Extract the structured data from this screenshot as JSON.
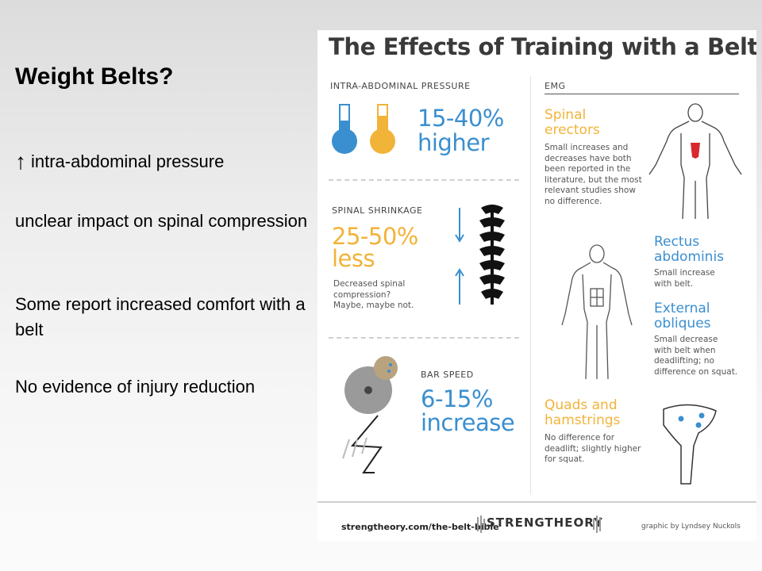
{
  "slide": {
    "title": "Weight Belts?",
    "bullets": {
      "pressure_arrow": "↑",
      "pressure_text": "intra-abdominal pressure",
      "compression": "unclear impact on spinal compression",
      "comfort": "Some report increased comfort with a belt",
      "injury": "No evidence of injury reduction"
    }
  },
  "infographic": {
    "title": "The Effects of Training with a Belt",
    "pressure": {
      "label": "INTRA-ABDOMINAL PRESSURE",
      "value": "15-40%",
      "word": "higher"
    },
    "shrinkage": {
      "label": "SPINAL SHRINKAGE",
      "value": "25-50%",
      "word": "less",
      "note_1": "Decreased spinal",
      "note_2": "compression?",
      "note_3": "Maybe, maybe not."
    },
    "bar_speed": {
      "label": "BAR SPEED",
      "value": "6-15%",
      "word": "increase"
    },
    "emg": {
      "label": "EMG",
      "erectors": {
        "title_1": "Spinal",
        "title_2": "erectors",
        "text_1": "Small increases and",
        "text_2": "decreases have both",
        "text_3": "been reported in the",
        "text_4": "literature, but the most",
        "text_5": "relevant studies show",
        "text_6": "no difference."
      },
      "rectus": {
        "title_1": "Rectus",
        "title_2": "abdominis",
        "text_1": "Small increase",
        "text_2": "with belt."
      },
      "obliques": {
        "title_1": "External",
        "title_2": "obliques",
        "text_1": "Small decrease",
        "text_2": "with belt when",
        "text_3": "deadlifting; no",
        "text_4": "difference on squat."
      },
      "quads": {
        "title_1": "Quads and",
        "title_2": "hamstrings",
        "text_1": "No difference for",
        "text_2": "deadlift; slightly higher",
        "text_3": "for squat."
      }
    },
    "footer": {
      "url": "strengtheory.com/the-belt-bible",
      "brand": "STRENGTHEORY",
      "credit": "graphic by Lyndsey Nuckols"
    },
    "colors": {
      "blue": "#3a8fd0",
      "orange": "#f2b339",
      "red": "#d9272e",
      "grey": "#999999"
    }
  }
}
